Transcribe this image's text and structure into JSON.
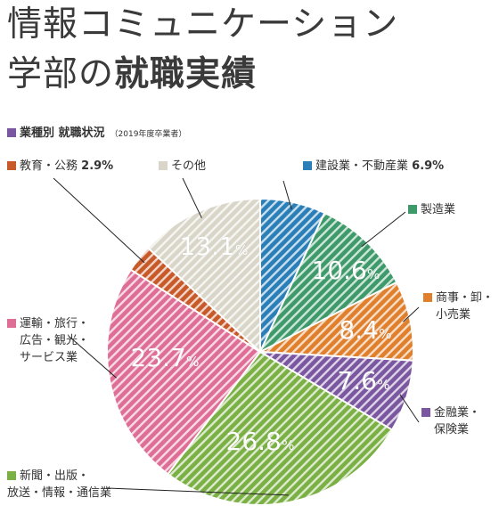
{
  "title": {
    "line1": "情報コミュニケーション",
    "line2_a": "学部の",
    "line2_b": "就職実績"
  },
  "subtitle": {
    "text": "業種別 就職状況",
    "note": "（2019年度卒業者）",
    "color": "#7a57a0"
  },
  "chart_data": {
    "type": "pie",
    "title": "業種別 就職状況",
    "note": "（2019年度卒業者）",
    "slices": [
      {
        "label": "建設業・不動産業",
        "value": 6.9,
        "pct_text": "6.9%",
        "color": "#2a7fb8"
      },
      {
        "label": "製造業",
        "value": 10.6,
        "pct_text": "10.6%",
        "color": "#3e9a6a"
      },
      {
        "label": "商事・卸・小売業",
        "value": 8.4,
        "pct_text": "8.4%",
        "color": "#e07f2c"
      },
      {
        "label": "金融業・保険業",
        "value": 7.6,
        "pct_text": "7.6%",
        "color": "#7a57a0"
      },
      {
        "label": "新聞・出版・放送・情報・通信業",
        "value": 26.8,
        "pct_text": "26.8%",
        "color": "#7ab044"
      },
      {
        "label": "運輸・旅行・広告・観光・サービス業",
        "value": 23.7,
        "pct_text": "23.7%",
        "color": "#df6e96"
      },
      {
        "label": "教育・公務",
        "value": 2.9,
        "pct_text": "2.9%",
        "color": "#c85a2a"
      },
      {
        "label": "その他",
        "value": 13.1,
        "pct_text": "13.1%",
        "color": "#d9d6c9"
      }
    ]
  },
  "labels": {
    "construction": {
      "text": "建設業・不動産業",
      "value": "6.9%"
    },
    "manufacturing": {
      "text": "製造業"
    },
    "commerce": {
      "line1": "商事・卸・",
      "line2": "小売業"
    },
    "finance": {
      "line1": "金融業・",
      "line2": "保険業"
    },
    "media": {
      "line1": "新聞・出版・",
      "line2": "放送・情報・通信業"
    },
    "transport": {
      "line1": "運輸・旅行・",
      "line2": "広告・観光・",
      "line3": "サービス業"
    },
    "education": {
      "text": "教育・公務",
      "value": "2.9%"
    },
    "other": {
      "text": "その他"
    }
  }
}
